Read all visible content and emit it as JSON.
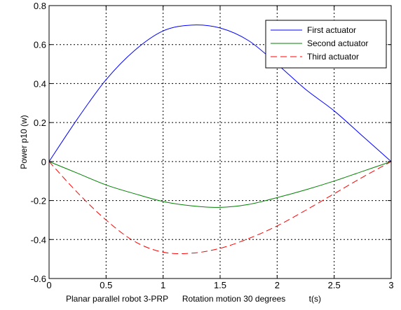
{
  "chart_data": {
    "type": "line",
    "title": "",
    "xlabel": "Planar parallel robot 3-PRP      Rotation motion 30 degrees          t(s)",
    "ylabel": "Power p10 (w)",
    "xlim": [
      0,
      3
    ],
    "ylim": [
      -0.6,
      0.8
    ],
    "xticks": [
      "0",
      "0.5",
      "1",
      "1.5",
      "2",
      "2.5",
      "3"
    ],
    "yticks": [
      "-0.6",
      "-0.4",
      "-0.2",
      "0",
      "0.2",
      "0.4",
      "0.6",
      "0.8"
    ],
    "grid": true,
    "legend_position": "top-right",
    "x": [
      0,
      0.25,
      0.5,
      0.75,
      1.0,
      1.25,
      1.5,
      1.75,
      2.0,
      2.25,
      2.5,
      2.75,
      3.0
    ],
    "series": [
      {
        "name": "First actuator",
        "color": "#0000ff",
        "dash": "solid",
        "values": [
          0,
          0.22,
          0.42,
          0.57,
          0.67,
          0.7,
          0.685,
          0.62,
          0.5,
          0.37,
          0.26,
          0.13,
          0
        ]
      },
      {
        "name": "Second actuator",
        "color": "#008000",
        "dash": "solid",
        "values": [
          0,
          -0.06,
          -0.12,
          -0.165,
          -0.205,
          -0.227,
          -0.235,
          -0.22,
          -0.185,
          -0.145,
          -0.1,
          -0.05,
          0
        ]
      },
      {
        "name": "Third actuator",
        "color": "#ff0000",
        "dash": "dashed",
        "values": [
          0,
          -0.16,
          -0.3,
          -0.41,
          -0.465,
          -0.47,
          -0.445,
          -0.395,
          -0.33,
          -0.25,
          -0.165,
          -0.08,
          0
        ]
      }
    ]
  }
}
